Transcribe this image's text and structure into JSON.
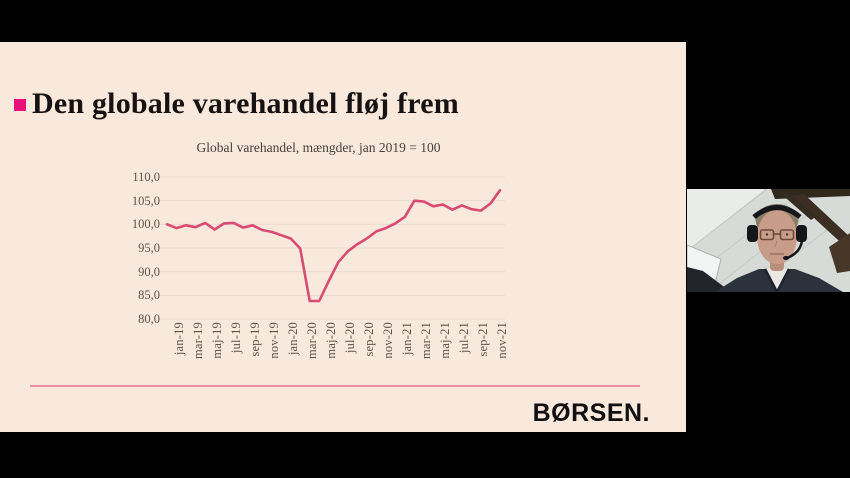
{
  "window": {
    "background": "#000000"
  },
  "slide": {
    "background": "#f9e8dc",
    "bullet_color": "#e9127d",
    "title": "Den globale varehandel fløj frem",
    "divider_color": "#e78fa5",
    "logo": "BØRSEN."
  },
  "chart_data": {
    "type": "line",
    "title": "Global varehandel, mængder, jan 2019 = 100",
    "line_color": "#d84b72",
    "grid_color": "#eddbd2",
    "axis_text_color": "#5d5349",
    "grid": true,
    "legend": false,
    "ylim": [
      80,
      110
    ],
    "y_ticks": [
      "110,0",
      "105,0",
      "100,0",
      "95,0",
      "90,0",
      "85,0",
      "80,0"
    ],
    "y_tick_values": [
      110,
      105,
      100,
      95,
      90,
      85,
      80
    ],
    "x_tick_labels": [
      "jan-19",
      "mar-19",
      "maj-19",
      "jul-19",
      "sep-19",
      "nov-19",
      "jan-20",
      "mar-20",
      "maj-20",
      "jul-20",
      "sep-20",
      "nov-20",
      "jan-21",
      "mar-21",
      "maj-21",
      "jul-21",
      "sep-21",
      "nov-21"
    ],
    "x": [
      "jan-19",
      "feb-19",
      "mar-19",
      "apr-19",
      "maj-19",
      "jun-19",
      "jul-19",
      "aug-19",
      "sep-19",
      "okt-19",
      "nov-19",
      "dec-19",
      "jan-20",
      "feb-20",
      "mar-20",
      "apr-20",
      "maj-20",
      "jun-20",
      "jul-20",
      "aug-20",
      "sep-20",
      "okt-20",
      "nov-20",
      "dec-20",
      "jan-21",
      "feb-21",
      "mar-21",
      "apr-21",
      "maj-21",
      "jun-21",
      "jul-21",
      "aug-21",
      "sep-21",
      "okt-21",
      "nov-21",
      "dec-21"
    ],
    "values": [
      100.0,
      99.2,
      99.8,
      99.4,
      100.3,
      98.9,
      100.2,
      100.3,
      99.3,
      99.8,
      98.8,
      98.4,
      97.7,
      97.0,
      94.9,
      83.8,
      83.8,
      88.0,
      92.0,
      94.3,
      95.8,
      97.0,
      98.5,
      99.2,
      100.2,
      101.6,
      105.0,
      104.8,
      103.8,
      104.2,
      103.1,
      104.0,
      103.2,
      102.9,
      104.4,
      107.2
    ]
  },
  "webcam": {
    "jacket_color": "#2b323b",
    "shirt_color": "#e9e8e2",
    "skin_color": "#c79c88",
    "headset_color": "#15161a",
    "beam_color": "#3b2f23",
    "ceiling_color": "#e9ece9"
  }
}
